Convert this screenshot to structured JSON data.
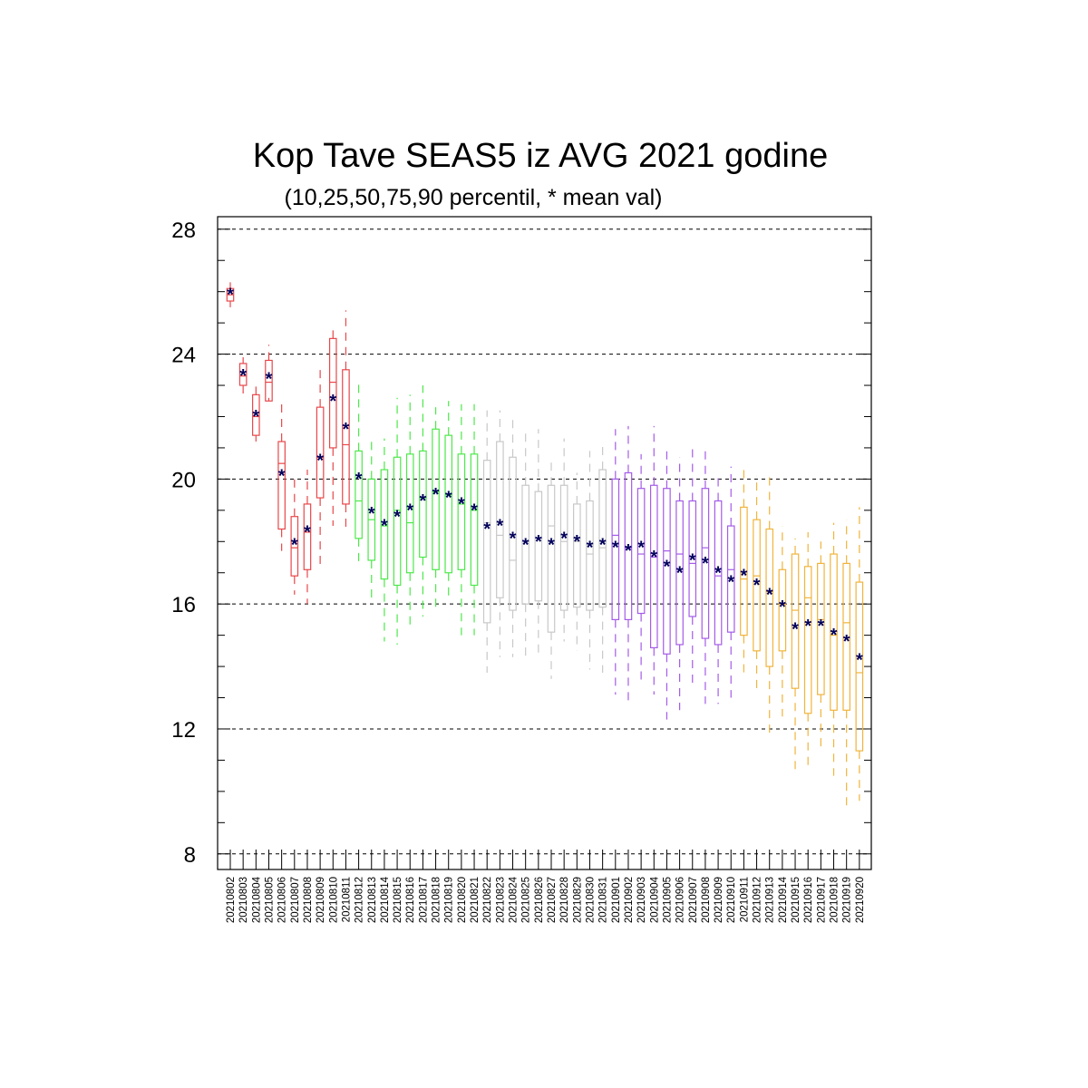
{
  "chart_data": {
    "type": "boxplot",
    "title": "Kop Tave SEAS5 iz AVG 2021 godine",
    "subtitle": "(10,25,50,75,90 percentil, * mean val)",
    "ylim": [
      7.5,
      28.4
    ],
    "yticks": [
      8,
      12,
      16,
      20,
      24,
      28
    ],
    "grid_y": true,
    "mean_color": "#00005a",
    "series_colors": [
      "#e8474a",
      "#4de84a",
      "#c8c8c8",
      "#a55be8",
      "#f0b43c"
    ],
    "categories": [
      "20210802",
      "20210803",
      "20210804",
      "20210805",
      "20210806",
      "20210807",
      "20210808",
      "20210809",
      "20210810",
      "20210811",
      "20210812",
      "20210813",
      "20210814",
      "20210815",
      "20210816",
      "20210817",
      "20210818",
      "20210819",
      "20210820",
      "20210821",
      "20210822",
      "20210823",
      "20210824",
      "20210825",
      "20210826",
      "20210827",
      "20210828",
      "20210829",
      "20210830",
      "20210831",
      "20210901",
      "20210902",
      "20210903",
      "20210904",
      "20210905",
      "20210906",
      "20210907",
      "20210908",
      "20210909",
      "20210910",
      "20210911",
      "20210912",
      "20210913",
      "20210914",
      "20210915",
      "20210916",
      "20210917",
      "20210918",
      "20210919",
      "20210920"
    ],
    "group": [
      0,
      0,
      0,
      0,
      0,
      0,
      0,
      0,
      0,
      0,
      1,
      1,
      1,
      1,
      1,
      1,
      1,
      1,
      1,
      1,
      2,
      2,
      2,
      2,
      2,
      2,
      2,
      2,
      2,
      2,
      3,
      3,
      3,
      3,
      3,
      3,
      3,
      3,
      3,
      3,
      4,
      4,
      4,
      4,
      4,
      4,
      4,
      4,
      4,
      4
    ],
    "p10": [
      25.5,
      22.6,
      21.2,
      22.6,
      17.7,
      16.3,
      16.0,
      17.2,
      18.5,
      18.4,
      17.3,
      16.1,
      14.8,
      14.7,
      15.2,
      15.6,
      15.9,
      16.2,
      15.0,
      15.0,
      13.8,
      14.3,
      14.3,
      14.2,
      14.4,
      13.6,
      14.8,
      14.5,
      13.9,
      13.8,
      13.1,
      12.8,
      13.5,
      13.1,
      12.3,
      12.6,
      13.3,
      12.8,
      12.8,
      13.0,
      13.7,
      13.2,
      11.7,
      12.4,
      10.7,
      10.8,
      11.4,
      10.5,
      9.4,
      9.7
    ],
    "p25": [
      25.7,
      23.0,
      21.4,
      22.5,
      18.4,
      16.9,
      17.1,
      19.4,
      21.0,
      19.2,
      18.1,
      17.4,
      16.8,
      16.6,
      17.0,
      17.5,
      17.1,
      17.0,
      17.1,
      16.6,
      15.4,
      16.2,
      15.8,
      16.0,
      16.1,
      15.1,
      15.8,
      15.9,
      15.8,
      15.9,
      15.5,
      15.5,
      15.7,
      14.6,
      14.4,
      14.7,
      15.6,
      14.9,
      14.7,
      15.1,
      15.0,
      14.5,
      14.0,
      14.5,
      13.3,
      12.5,
      13.1,
      12.6,
      12.6,
      11.3
    ],
    "p50": [
      25.9,
      23.3,
      22.0,
      23.1,
      20.5,
      17.8,
      18.3,
      20.7,
      23.1,
      21.1,
      19.3,
      18.7,
      18.5,
      19.0,
      18.6,
      19.4,
      19.6,
      19.5,
      19.2,
      19.0,
      18.6,
      18.2,
      17.4,
      18.0,
      18.1,
      18.5,
      18.0,
      18.0,
      17.6,
      17.8,
      18.2,
      17.8,
      17.6,
      17.5,
      17.7,
      17.6,
      17.3,
      17.8,
      16.9,
      17.1,
      16.8,
      16.9,
      16.4,
      16.0,
      15.8,
      16.2,
      15.5,
      15.0,
      15.4,
      13.8
    ],
    "p75": [
      26.1,
      23.7,
      22.7,
      23.8,
      21.2,
      18.8,
      19.2,
      22.3,
      24.5,
      23.5,
      20.9,
      20.0,
      20.3,
      20.7,
      20.8,
      20.9,
      21.6,
      21.4,
      20.8,
      20.8,
      20.6,
      21.2,
      20.7,
      19.8,
      19.6,
      19.8,
      19.8,
      19.2,
      19.3,
      20.3,
      20.0,
      20.2,
      19.7,
      19.8,
      19.7,
      19.3,
      19.3,
      19.7,
      19.3,
      18.5,
      19.1,
      18.7,
      18.4,
      17.1,
      17.6,
      17.2,
      17.3,
      17.6,
      17.3,
      16.7
    ],
    "p90": [
      26.3,
      23.9,
      23.0,
      24.3,
      22.4,
      20.0,
      20.3,
      23.6,
      24.8,
      25.4,
      23.1,
      21.3,
      21.3,
      22.6,
      22.7,
      23.0,
      22.3,
      22.5,
      22.4,
      22.4,
      22.2,
      22.2,
      21.9,
      21.5,
      21.6,
      20.6,
      21.3,
      20.2,
      20.9,
      21.2,
      21.6,
      21.7,
      20.8,
      21.7,
      21.0,
      20.7,
      21.0,
      20.9,
      20.2,
      20.4,
      20.3,
      20.1,
      20.1,
      18.5,
      18.1,
      18.3,
      18.0,
      18.6,
      18.7,
      19.1
    ],
    "mean": [
      26.0,
      23.4,
      22.1,
      23.3,
      20.2,
      18.0,
      18.4,
      20.7,
      22.6,
      21.7,
      20.1,
      19.0,
      18.6,
      18.9,
      19.1,
      19.4,
      19.6,
      19.5,
      19.3,
      19.1,
      18.5,
      18.6,
      18.2,
      18.0,
      18.1,
      18.0,
      18.2,
      18.1,
      17.9,
      18.0,
      17.9,
      17.8,
      17.9,
      17.6,
      17.3,
      17.1,
      17.5,
      17.4,
      17.1,
      16.8,
      17.0,
      16.7,
      16.4,
      16.0,
      15.3,
      15.4,
      15.4,
      15.1,
      14.9,
      14.3
    ]
  }
}
